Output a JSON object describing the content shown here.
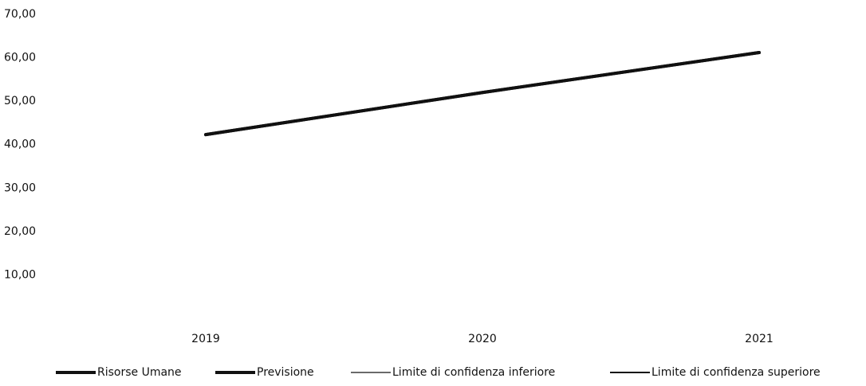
{
  "chart_data": {
    "type": "line",
    "categories": [
      "2019",
      "2020",
      "2021"
    ],
    "series": [
      {
        "name": "Risorse Umane",
        "color": "#111111",
        "line_width": 4,
        "values": [
          42.3,
          52,
          61.2
        ]
      },
      {
        "name": "Previsione",
        "color": "#111111",
        "line_width": 4,
        "values": [
          42.3,
          52,
          61.2
        ]
      },
      {
        "name": "Limite di confidenza inferiore",
        "color": "#111111",
        "line_width": 1.2,
        "values": [
          42.3,
          52,
          61.2
        ]
      },
      {
        "name": "Limite di confidenza superiore",
        "color": "#111111",
        "line_width": 2,
        "values": [
          42.3,
          52,
          61.2
        ]
      }
    ],
    "ylim": [
      0,
      70
    ],
    "yticks": [
      {
        "value": 10,
        "label": "10,00"
      },
      {
        "value": 20,
        "label": "20,00"
      },
      {
        "value": 30,
        "label": "30,00"
      },
      {
        "value": 40,
        "label": "40,00"
      },
      {
        "value": 50,
        "label": "50,00"
      },
      {
        "value": 60,
        "label": "60,00"
      },
      {
        "value": 70,
        "label": "70,00"
      }
    ],
    "grid": false
  }
}
